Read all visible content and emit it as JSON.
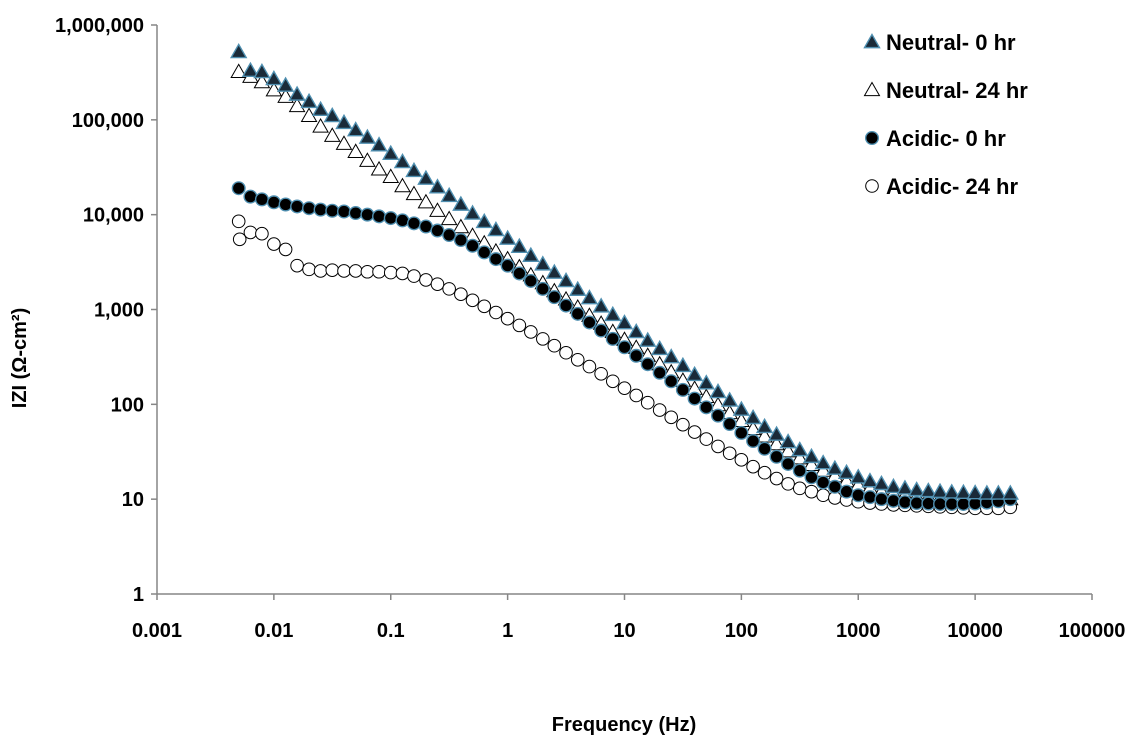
{
  "chart_data": {
    "type": "scatter",
    "xlabel": "Frequency (Hz)",
    "ylabel": "IZI (Ω-cm²)",
    "x_scale": "log",
    "y_scale": "log",
    "xlim": [
      0.001,
      100000
    ],
    "ylim": [
      1,
      1000000
    ],
    "x_ticks": [
      0.001,
      0.01,
      0.1,
      1,
      10,
      100,
      1000,
      10000,
      100000
    ],
    "x_tick_labels": [
      "0.001",
      "0.01",
      "0.1",
      "1",
      "10",
      "100",
      "1000",
      "10000",
      "100000"
    ],
    "y_ticks": [
      1,
      10,
      100,
      1000,
      10000,
      100000,
      1000000
    ],
    "y_tick_labels": [
      "1",
      "10",
      "100",
      "1,000",
      "10,000",
      "100,000",
      "1,000,000"
    ],
    "grid": false,
    "legend_position": "top-right",
    "colors": {
      "neutral_fill": "#1a2a38",
      "neutral_edge": "#4f8fb0",
      "hollow_fill": "#ffffff",
      "hollow_edge": "#000000"
    },
    "series": [
      {
        "name": "Neutral- 0 hr",
        "marker": "triangle-filled",
        "points": [
          [
            0.005,
            520000
          ],
          [
            0.0063,
            330000
          ],
          [
            0.0079,
            320000
          ],
          [
            0.01,
            270000
          ],
          [
            0.0126,
            230000
          ],
          [
            0.0158,
            185000
          ],
          [
            0.02,
            155000
          ],
          [
            0.0251,
            128000
          ],
          [
            0.0316,
            110000
          ],
          [
            0.0398,
            93000
          ],
          [
            0.0501,
            78000
          ],
          [
            0.0631,
            65000
          ],
          [
            0.0794,
            54000
          ],
          [
            0.1,
            44000
          ],
          [
            0.126,
            36000
          ],
          [
            0.158,
            29000
          ],
          [
            0.2,
            24000
          ],
          [
            0.251,
            19500
          ],
          [
            0.316,
            15800
          ],
          [
            0.398,
            12800
          ],
          [
            0.501,
            10300
          ],
          [
            0.631,
            8400
          ],
          [
            0.794,
            6900
          ],
          [
            1,
            5600
          ],
          [
            1.26,
            4600
          ],
          [
            1.58,
            3700
          ],
          [
            2,
            3000
          ],
          [
            2.51,
            2450
          ],
          [
            3.16,
            2000
          ],
          [
            3.98,
            1620
          ],
          [
            5.01,
            1320
          ],
          [
            6.31,
            1080
          ],
          [
            7.94,
            880
          ],
          [
            10,
            720
          ],
          [
            12.6,
            580
          ],
          [
            15.8,
            470
          ],
          [
            20,
            385
          ],
          [
            25.1,
            315
          ],
          [
            31.6,
            255
          ],
          [
            39.8,
            205
          ],
          [
            50.1,
            167
          ],
          [
            63.1,
            135
          ],
          [
            79.4,
            110
          ],
          [
            100,
            88
          ],
          [
            126,
            72
          ],
          [
            158,
            58
          ],
          [
            200,
            48
          ],
          [
            251,
            40
          ],
          [
            316,
            33
          ],
          [
            398,
            28
          ],
          [
            501,
            24
          ],
          [
            631,
            21
          ],
          [
            794,
            19
          ],
          [
            1000,
            17
          ],
          [
            1260,
            15.5
          ],
          [
            1580,
            14.5
          ],
          [
            2000,
            13.5
          ],
          [
            2510,
            13
          ],
          [
            3160,
            12.5
          ],
          [
            3980,
            12.2
          ],
          [
            5010,
            12
          ],
          [
            6310,
            11.8
          ],
          [
            7940,
            11.7
          ],
          [
            10000,
            11.6
          ],
          [
            12600,
            11.5
          ],
          [
            15800,
            11.5
          ],
          [
            20000,
            11.5
          ]
        ]
      },
      {
        "name": "Neutral- 24 hr",
        "marker": "triangle-open",
        "points": [
          [
            0.005,
            320000
          ],
          [
            0.0063,
            285000
          ],
          [
            0.0079,
            250000
          ],
          [
            0.01,
            205000
          ],
          [
            0.0126,
            175000
          ],
          [
            0.0158,
            140000
          ],
          [
            0.02,
            110000
          ],
          [
            0.0251,
            85000
          ],
          [
            0.0316,
            68000
          ],
          [
            0.0398,
            56000
          ],
          [
            0.0501,
            46000
          ],
          [
            0.0631,
            37000
          ],
          [
            0.0794,
            30000
          ],
          [
            0.1,
            25000
          ],
          [
            0.126,
            20000
          ],
          [
            0.158,
            16500
          ],
          [
            0.2,
            13500
          ],
          [
            0.251,
            11000
          ],
          [
            0.316,
            9000
          ],
          [
            0.398,
            7400
          ],
          [
            0.501,
            6000
          ],
          [
            0.631,
            5000
          ],
          [
            0.794,
            4100
          ],
          [
            1,
            3400
          ],
          [
            1.26,
            2800
          ],
          [
            1.58,
            2300
          ],
          [
            2,
            1900
          ],
          [
            2.51,
            1560
          ],
          [
            3.16,
            1280
          ],
          [
            3.98,
            1050
          ],
          [
            5.01,
            860
          ],
          [
            6.31,
            710
          ],
          [
            7.94,
            580
          ],
          [
            10,
            480
          ],
          [
            12.6,
            395
          ],
          [
            15.8,
            325
          ],
          [
            20,
            265
          ],
          [
            25.1,
            218
          ],
          [
            31.6,
            178
          ],
          [
            39.8,
            146
          ],
          [
            50.1,
            120
          ],
          [
            63.1,
            98
          ],
          [
            79.4,
            81
          ],
          [
            100,
            67
          ],
          [
            126,
            55
          ],
          [
            158,
            46
          ],
          [
            200,
            38
          ],
          [
            251,
            32
          ],
          [
            316,
            27
          ],
          [
            398,
            23
          ],
          [
            501,
            20
          ],
          [
            631,
            17.5
          ],
          [
            794,
            15.5
          ],
          [
            1000,
            14
          ],
          [
            1260,
            13
          ],
          [
            1580,
            12
          ],
          [
            2000,
            11.5
          ],
          [
            2510,
            11
          ],
          [
            3160,
            10.7
          ],
          [
            3980,
            10.5
          ],
          [
            5010,
            10.3
          ],
          [
            6310,
            10.2
          ],
          [
            7940,
            10.1
          ],
          [
            10000,
            10
          ],
          [
            12600,
            10
          ],
          [
            15800,
            10
          ],
          [
            20000,
            10
          ]
        ]
      },
      {
        "name": "Acidic- 0 hr",
        "marker": "circle-filled",
        "points": [
          [
            0.005,
            19000
          ],
          [
            0.0063,
            15500
          ],
          [
            0.0079,
            14500
          ],
          [
            0.01,
            13500
          ],
          [
            0.0126,
            12800
          ],
          [
            0.0158,
            12200
          ],
          [
            0.02,
            11700
          ],
          [
            0.0251,
            11300
          ],
          [
            0.0316,
            11000
          ],
          [
            0.0398,
            10800
          ],
          [
            0.0501,
            10400
          ],
          [
            0.0631,
            10000
          ],
          [
            0.0794,
            9600
          ],
          [
            0.1,
            9200
          ],
          [
            0.126,
            8700
          ],
          [
            0.158,
            8100
          ],
          [
            0.2,
            7500
          ],
          [
            0.251,
            6800
          ],
          [
            0.316,
            6100
          ],
          [
            0.398,
            5400
          ],
          [
            0.501,
            4700
          ],
          [
            0.631,
            4000
          ],
          [
            0.794,
            3400
          ],
          [
            1,
            2900
          ],
          [
            1.26,
            2400
          ],
          [
            1.58,
            2000
          ],
          [
            2,
            1650
          ],
          [
            2.51,
            1350
          ],
          [
            3.16,
            1100
          ],
          [
            3.98,
            900
          ],
          [
            5.01,
            730
          ],
          [
            6.31,
            600
          ],
          [
            7.94,
            490
          ],
          [
            10,
            400
          ],
          [
            12.6,
            325
          ],
          [
            15.8,
            265
          ],
          [
            20,
            215
          ],
          [
            25.1,
            175
          ],
          [
            31.6,
            142
          ],
          [
            39.8,
            115
          ],
          [
            50.1,
            93
          ],
          [
            63.1,
            76
          ],
          [
            79.4,
            62
          ],
          [
            100,
            50
          ],
          [
            126,
            41
          ],
          [
            158,
            34
          ],
          [
            200,
            28
          ],
          [
            251,
            23.5
          ],
          [
            316,
            20
          ],
          [
            398,
            17
          ],
          [
            501,
            15
          ],
          [
            631,
            13.5
          ],
          [
            794,
            12
          ],
          [
            1000,
            11
          ],
          [
            1260,
            10.5
          ],
          [
            1580,
            10
          ],
          [
            2000,
            9.6
          ],
          [
            2510,
            9.3
          ],
          [
            3160,
            9.1
          ],
          [
            3980,
            9
          ],
          [
            5010,
            8.9
          ],
          [
            6310,
            8.9
          ],
          [
            7940,
            8.9
          ],
          [
            10000,
            9
          ],
          [
            12600,
            9.2
          ],
          [
            15800,
            9.5
          ],
          [
            20000,
            10
          ]
        ]
      },
      {
        "name": "Acidic- 24 hr",
        "marker": "circle-open",
        "points": [
          [
            0.005,
            8500
          ],
          [
            0.0051,
            5500
          ],
          [
            0.0063,
            6500
          ],
          [
            0.0079,
            6300
          ],
          [
            0.01,
            4900
          ],
          [
            0.0126,
            4300
          ],
          [
            0.0158,
            2900
          ],
          [
            0.02,
            2650
          ],
          [
            0.0251,
            2550
          ],
          [
            0.0316,
            2600
          ],
          [
            0.0398,
            2550
          ],
          [
            0.0501,
            2550
          ],
          [
            0.0631,
            2500
          ],
          [
            0.0794,
            2500
          ],
          [
            0.1,
            2450
          ],
          [
            0.126,
            2400
          ],
          [
            0.158,
            2250
          ],
          [
            0.2,
            2050
          ],
          [
            0.251,
            1850
          ],
          [
            0.316,
            1650
          ],
          [
            0.398,
            1450
          ],
          [
            0.501,
            1250
          ],
          [
            0.631,
            1080
          ],
          [
            0.794,
            930
          ],
          [
            1,
            800
          ],
          [
            1.26,
            680
          ],
          [
            1.58,
            580
          ],
          [
            2,
            490
          ],
          [
            2.51,
            415
          ],
          [
            3.16,
            350
          ],
          [
            3.98,
            295
          ],
          [
            5.01,
            250
          ],
          [
            6.31,
            210
          ],
          [
            7.94,
            175
          ],
          [
            10,
            148
          ],
          [
            12.6,
            124
          ],
          [
            15.8,
            104
          ],
          [
            20,
            87
          ],
          [
            25.1,
            73
          ],
          [
            31.6,
            61
          ],
          [
            39.8,
            51
          ],
          [
            50.1,
            43
          ],
          [
            63.1,
            36
          ],
          [
            79.4,
            30.5
          ],
          [
            100,
            26
          ],
          [
            126,
            22
          ],
          [
            158,
            19
          ],
          [
            200,
            16.5
          ],
          [
            251,
            14.5
          ],
          [
            316,
            13
          ],
          [
            398,
            12
          ],
          [
            501,
            11
          ],
          [
            631,
            10.3
          ],
          [
            794,
            9.8
          ],
          [
            1000,
            9.4
          ],
          [
            1260,
            9.1
          ],
          [
            1580,
            8.9
          ],
          [
            2000,
            8.7
          ],
          [
            2510,
            8.6
          ],
          [
            3160,
            8.5
          ],
          [
            3980,
            8.4
          ],
          [
            5010,
            8.3
          ],
          [
            6310,
            8.2
          ],
          [
            7940,
            8.1
          ],
          [
            10000,
            8
          ],
          [
            12600,
            8
          ],
          [
            15800,
            8
          ],
          [
            20000,
            8.2
          ]
        ]
      }
    ]
  }
}
